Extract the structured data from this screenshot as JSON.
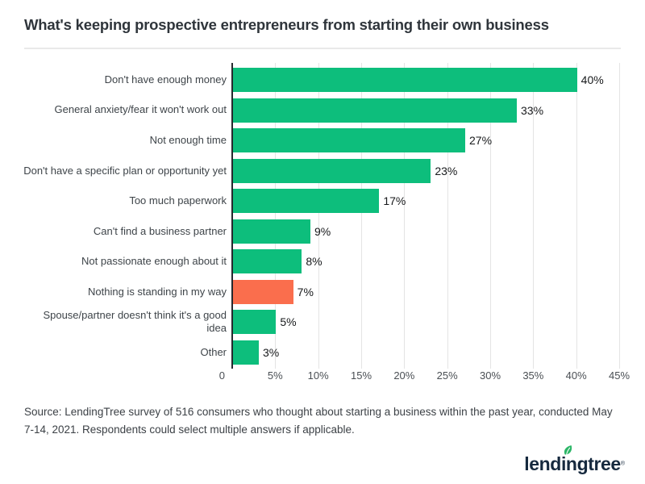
{
  "title": "What's keeping prospective entrepreneurs from starting their own business",
  "chart_data": {
    "type": "bar",
    "orientation": "horizontal",
    "categories": [
      "Don't have enough money",
      "General anxiety/fear it won't work out",
      "Not enough time",
      "Don't have a specific plan or opportunity yet",
      "Too much paperwork",
      "Can't find a business partner",
      "Not passionate enough about it",
      "Nothing is standing in my way",
      "Spouse/partner doesn't think it's a good\nidea",
      "Other"
    ],
    "values": [
      40,
      33,
      27,
      23,
      17,
      9,
      8,
      7,
      5,
      3
    ],
    "value_labels": [
      "40%",
      "33%",
      "27%",
      "23%",
      "17%",
      "9%",
      "8%",
      "7%",
      "5%",
      "3%"
    ],
    "highlight_index": 7,
    "colors": {
      "bar": "#0dbe7c",
      "highlight": "#fa6e4d"
    },
    "x_ticks": [
      "0",
      "5%",
      "10%",
      "15%",
      "20%",
      "25%",
      "30%",
      "35%",
      "40%",
      "45%"
    ],
    "xlim": [
      0,
      45
    ],
    "grid": true,
    "legend": "none"
  },
  "source": "Source: LendingTree survey of 516 consumers who thought about starting a business within the past year, conducted May 7-14, 2021. Respondents could select multiple answers if applicable.",
  "logo": {
    "text": "lendingtree",
    "trademark": "®",
    "leaf_color": "#2cb667",
    "text_color": "#16293e"
  }
}
